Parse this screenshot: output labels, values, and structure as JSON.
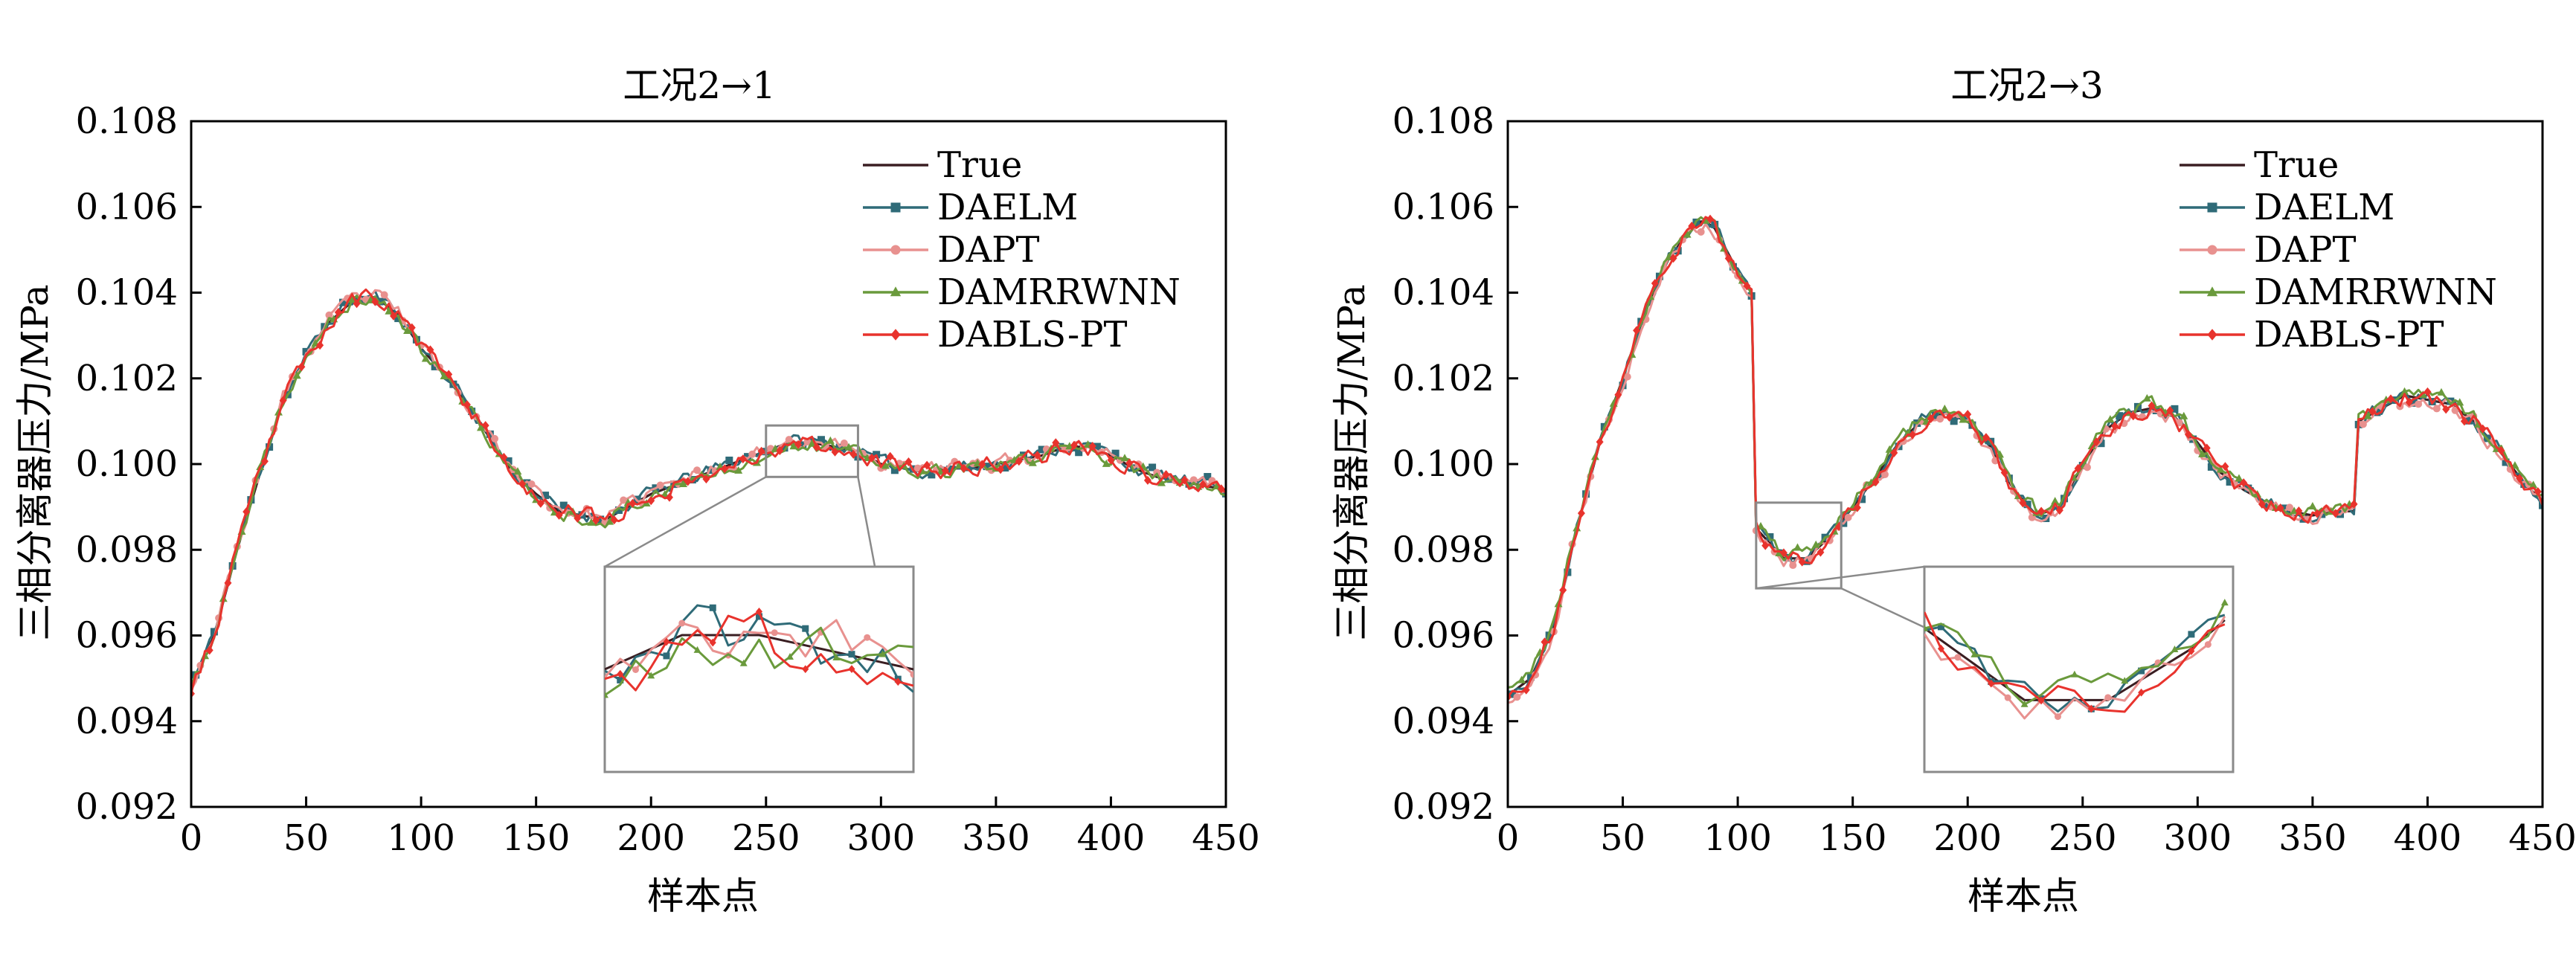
{
  "chart_data": [
    {
      "type": "line",
      "title": "工况2→1",
      "xlabel": "样本点",
      "ylabel": "三相分离器压力/MPa",
      "xlim": [
        0,
        450
      ],
      "ylim": [
        0.092,
        0.108
      ],
      "xticks": [
        0,
        50,
        100,
        150,
        200,
        250,
        300,
        350,
        400,
        450
      ],
      "xtick_labels": [
        "0",
        "50",
        "100",
        "150",
        "200",
        "250",
        "300",
        "350",
        "400",
        "450"
      ],
      "yticks": [
        0.092,
        0.094,
        0.096,
        0.098,
        0.1,
        0.102,
        0.104,
        0.106,
        0.108
      ],
      "ytick_labels": [
        "0.092",
        "0.094",
        "0.096",
        "0.098",
        "0.100",
        "0.102",
        "0.104",
        "0.106",
        "0.108"
      ],
      "legend_position": "top-right",
      "series": [
        {
          "name": "True",
          "color": "#3a1e22",
          "marker": "none",
          "noise": 0,
          "seed": 1,
          "offset": 0
        },
        {
          "name": "DAELM",
          "color": "#2f6b78",
          "marker": "square",
          "noise": 0.00024,
          "seed": 11,
          "offset": 3e-05
        },
        {
          "name": "DAPT",
          "color": "#e8918f",
          "marker": "circle",
          "noise": 0.00024,
          "seed": 23,
          "offset": 5e-05
        },
        {
          "name": "DAMRRWNN",
          "color": "#6a9a3c",
          "marker": "triangle",
          "noise": 0.00024,
          "seed": 37,
          "offset": -4e-05
        },
        {
          "name": "DABLS-PT",
          "color": "#e8332d",
          "marker": "diamond",
          "noise": 0.0003,
          "seed": 53,
          "offset": 0
        }
      ],
      "true_curve": [
        [
          0,
          0.0948
        ],
        [
          10,
          0.096
        ],
        [
          20,
          0.098
        ],
        [
          30,
          0.0998
        ],
        [
          40,
          0.1015
        ],
        [
          50,
          0.1025
        ],
        [
          60,
          0.1033
        ],
        [
          70,
          0.1038
        ],
        [
          80,
          0.1039
        ],
        [
          90,
          0.1035
        ],
        [
          100,
          0.1027
        ],
        [
          110,
          0.1021
        ],
        [
          120,
          0.1014
        ],
        [
          130,
          0.1006
        ],
        [
          140,
          0.0998
        ],
        [
          150,
          0.0993
        ],
        [
          160,
          0.0989
        ],
        [
          170,
          0.0988
        ],
        [
          180,
          0.0987
        ],
        [
          190,
          0.099
        ],
        [
          200,
          0.0993
        ],
        [
          210,
          0.0995
        ],
        [
          220,
          0.0997
        ],
        [
          230,
          0.0999
        ],
        [
          240,
          0.1001
        ],
        [
          250,
          0.1003
        ],
        [
          260,
          0.1005
        ],
        [
          270,
          0.1005
        ],
        [
          280,
          0.1004
        ],
        [
          290,
          0.1003
        ],
        [
          300,
          0.1
        ],
        [
          310,
          0.0999
        ],
        [
          320,
          0.0998
        ],
        [
          330,
          0.0999
        ],
        [
          340,
          0.0999
        ],
        [
          350,
          0.1
        ],
        [
          360,
          0.1001
        ],
        [
          370,
          0.1002
        ],
        [
          380,
          0.1004
        ],
        [
          390,
          0.1004
        ],
        [
          400,
          0.1002
        ],
        [
          410,
          0.0999
        ],
        [
          420,
          0.0997
        ],
        [
          430,
          0.0996
        ],
        [
          440,
          0.0995
        ],
        [
          450,
          0.0994
        ]
      ],
      "zoom": {
        "x": [
          250,
          290
        ],
        "y": [
          0.0997,
          0.1009
        ]
      }
    },
    {
      "type": "line",
      "title": "工况2→3",
      "xlabel": "样本点",
      "ylabel": "三相分离器压力/MPa",
      "xlim": [
        0,
        450
      ],
      "ylim": [
        0.092,
        0.108
      ],
      "xticks": [
        0,
        50,
        100,
        150,
        200,
        250,
        300,
        350,
        400,
        450
      ],
      "xtick_labels": [
        "0",
        "50",
        "100",
        "150",
        "200",
        "250",
        "300",
        "350",
        "400",
        "450"
      ],
      "yticks": [
        0.092,
        0.094,
        0.096,
        0.098,
        0.1,
        0.102,
        0.104,
        0.106,
        0.108
      ],
      "ytick_labels": [
        "0.092",
        "0.094",
        "0.096",
        "0.098",
        "0.100",
        "0.102",
        "0.104",
        "0.106",
        "0.108"
      ],
      "legend_position": "top-right",
      "series": [
        {
          "name": "True",
          "color": "#3a1e22",
          "marker": "none",
          "noise": 0,
          "seed": 3,
          "offset": 0
        },
        {
          "name": "DAELM",
          "color": "#2f6b78",
          "marker": "square",
          "noise": 0.00025,
          "seed": 17,
          "offset": 2e-05
        },
        {
          "name": "DAPT",
          "color": "#e8918f",
          "marker": "circle",
          "noise": 0.00026,
          "seed": 29,
          "offset": -8e-05
        },
        {
          "name": "DAMRRWNN",
          "color": "#6a9a3c",
          "marker": "triangle",
          "noise": 0.00025,
          "seed": 41,
          "offset": 8e-05
        },
        {
          "name": "DABLS-PT",
          "color": "#e8332d",
          "marker": "diamond",
          "noise": 0.0003,
          "seed": 59,
          "offset": 0
        }
      ],
      "true_curve": [
        [
          0,
          0.0946
        ],
        [
          10,
          0.095
        ],
        [
          20,
          0.0962
        ],
        [
          30,
          0.0985
        ],
        [
          40,
          0.1005
        ],
        [
          50,
          0.102
        ],
        [
          60,
          0.1036
        ],
        [
          70,
          0.1048
        ],
        [
          80,
          0.1055
        ],
        [
          85,
          0.1057
        ],
        [
          90,
          0.1055
        ],
        [
          100,
          0.1045
        ],
        [
          107,
          0.1039
        ],
        [
          108,
          0.0985
        ],
        [
          120,
          0.0978
        ],
        [
          130,
          0.0978
        ],
        [
          140,
          0.0983
        ],
        [
          150,
          0.099
        ],
        [
          160,
          0.0997
        ],
        [
          170,
          0.1005
        ],
        [
          180,
          0.101
        ],
        [
          190,
          0.1012
        ],
        [
          200,
          0.101
        ],
        [
          210,
          0.1004
        ],
        [
          220,
          0.0994
        ],
        [
          230,
          0.0988
        ],
        [
          240,
          0.099
        ],
        [
          250,
          0.1
        ],
        [
          260,
          0.1008
        ],
        [
          270,
          0.1012
        ],
        [
          280,
          0.1013
        ],
        [
          290,
          0.1011
        ],
        [
          300,
          0.1005
        ],
        [
          310,
          0.0998
        ],
        [
          320,
          0.0994
        ],
        [
          330,
          0.0991
        ],
        [
          340,
          0.0989
        ],
        [
          350,
          0.0988
        ],
        [
          360,
          0.0989
        ],
        [
          369,
          0.0989
        ],
        [
          370,
          0.101
        ],
        [
          380,
          0.1013
        ],
        [
          390,
          0.1016
        ],
        [
          400,
          0.1015
        ],
        [
          410,
          0.1014
        ],
        [
          420,
          0.101
        ],
        [
          430,
          0.1004
        ],
        [
          440,
          0.0997
        ],
        [
          450,
          0.0991
        ]
      ],
      "zoom": {
        "x": [
          108,
          145
        ],
        "y": [
          0.0971,
          0.0991
        ]
      }
    }
  ]
}
